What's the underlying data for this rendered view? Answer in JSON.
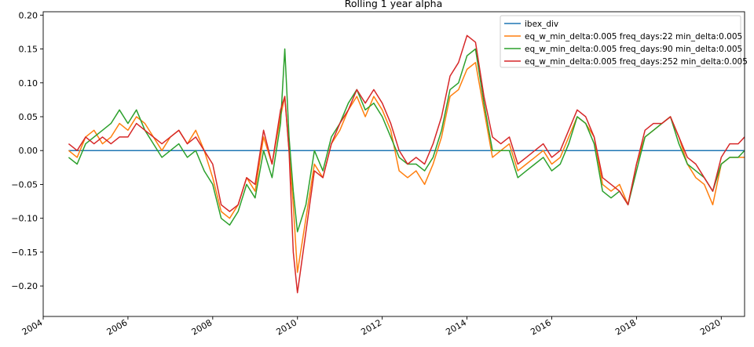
{
  "chart_data": {
    "type": "line",
    "title": "Rolling 1 year alpha",
    "xlabel": "",
    "ylabel": "",
    "xlim": [
      2004.0,
      2020.55
    ],
    "ylim": [
      -0.245,
      0.205
    ],
    "grid": false,
    "legend_position": "top-right",
    "x_ticks": [
      {
        "value": 2004,
        "label": "2004"
      },
      {
        "value": 2006,
        "label": "2006"
      },
      {
        "value": 2008,
        "label": "2008"
      },
      {
        "value": 2010,
        "label": "2010"
      },
      {
        "value": 2012,
        "label": "2012"
      },
      {
        "value": 2014,
        "label": "2014"
      },
      {
        "value": 2016,
        "label": "2016"
      },
      {
        "value": 2018,
        "label": "2018"
      },
      {
        "value": 2020,
        "label": "2020"
      }
    ],
    "y_ticks": [
      {
        "value": 0.2,
        "label": "0.20"
      },
      {
        "value": 0.15,
        "label": "0.15"
      },
      {
        "value": 0.1,
        "label": "0.10"
      },
      {
        "value": 0.05,
        "label": "0.05"
      },
      {
        "value": 0.0,
        "label": "0.00"
      },
      {
        "value": -0.05,
        "label": "−0.05"
      },
      {
        "value": -0.1,
        "label": "−0.10"
      },
      {
        "value": -0.15,
        "label": "−0.15"
      },
      {
        "value": -0.2,
        "label": "−0.20"
      }
    ],
    "x": [
      2004.6,
      2004.8,
      2005.0,
      2005.2,
      2005.4,
      2005.6,
      2005.8,
      2006.0,
      2006.2,
      2006.4,
      2006.6,
      2006.8,
      2007.0,
      2007.2,
      2007.4,
      2007.6,
      2007.8,
      2008.0,
      2008.2,
      2008.4,
      2008.6,
      2008.8,
      2009.0,
      2009.2,
      2009.4,
      2009.6,
      2009.7,
      2009.8,
      2009.9,
      2010.0,
      2010.2,
      2010.4,
      2010.6,
      2010.8,
      2011.0,
      2011.2,
      2011.4,
      2011.6,
      2011.8,
      2012.0,
      2012.2,
      2012.4,
      2012.6,
      2012.8,
      2013.0,
      2013.2,
      2013.4,
      2013.6,
      2013.8,
      2014.0,
      2014.2,
      2014.4,
      2014.6,
      2014.8,
      2015.0,
      2015.2,
      2015.4,
      2015.6,
      2015.8,
      2016.0,
      2016.2,
      2016.4,
      2016.6,
      2016.8,
      2017.0,
      2017.2,
      2017.4,
      2017.6,
      2017.8,
      2018.0,
      2018.2,
      2018.4,
      2018.6,
      2018.8,
      2019.0,
      2019.2,
      2019.4,
      2019.6,
      2019.8,
      2020.0,
      2020.2,
      2020.4,
      2020.55
    ],
    "series": [
      {
        "name": "ibex_div",
        "color": "#1f77b4",
        "values": [
          0,
          0,
          0,
          0,
          0,
          0,
          0,
          0,
          0,
          0,
          0,
          0,
          0,
          0,
          0,
          0,
          0,
          0,
          0,
          0,
          0,
          0,
          0,
          0,
          0,
          0,
          0,
          0,
          0,
          0,
          0,
          0,
          0,
          0,
          0,
          0,
          0,
          0,
          0,
          0,
          0,
          0,
          0,
          0,
          0,
          0,
          0,
          0,
          0,
          0,
          0,
          0,
          0,
          0,
          0,
          0,
          0,
          0,
          0,
          0,
          0,
          0,
          0,
          0,
          0,
          0,
          0,
          0,
          0,
          0,
          0,
          0,
          0,
          0,
          0,
          0,
          0,
          0,
          0,
          0,
          0,
          0,
          0
        ]
      },
      {
        "name": "eq_w_min_delta:0.005 freq_days:22 min_delta:0.005",
        "color": "#ff7f0e",
        "values": [
          0.0,
          -0.01,
          0.02,
          0.03,
          0.01,
          0.02,
          0.04,
          0.03,
          0.05,
          0.04,
          0.02,
          0.0,
          0.02,
          0.03,
          0.01,
          0.03,
          0.0,
          -0.04,
          -0.09,
          -0.1,
          -0.08,
          -0.04,
          -0.06,
          0.02,
          -0.02,
          0.05,
          0.08,
          0.0,
          -0.08,
          -0.18,
          -0.1,
          -0.02,
          -0.04,
          0.01,
          0.03,
          0.06,
          0.08,
          0.05,
          0.08,
          0.06,
          0.03,
          -0.03,
          -0.04,
          -0.03,
          -0.05,
          -0.02,
          0.02,
          0.08,
          0.09,
          0.12,
          0.13,
          0.06,
          -0.01,
          0.0,
          0.01,
          -0.03,
          -0.02,
          -0.01,
          0.0,
          -0.02,
          -0.01,
          0.02,
          0.05,
          0.04,
          0.02,
          -0.05,
          -0.06,
          -0.05,
          -0.08,
          -0.02,
          0.02,
          0.03,
          0.04,
          0.05,
          0.02,
          -0.02,
          -0.04,
          -0.05,
          -0.08,
          -0.02,
          -0.01,
          -0.01,
          -0.01
        ]
      },
      {
        "name": "eq_w_min_delta:0.005 freq_days:90 min_delta:0.005",
        "color": "#2ca02c",
        "values": [
          -0.01,
          -0.02,
          0.01,
          0.02,
          0.03,
          0.04,
          0.06,
          0.04,
          0.06,
          0.03,
          0.01,
          -0.01,
          0.0,
          0.01,
          -0.01,
          0.0,
          -0.03,
          -0.05,
          -0.1,
          -0.11,
          -0.09,
          -0.05,
          -0.07,
          0.0,
          -0.04,
          0.04,
          0.15,
          0.02,
          -0.06,
          -0.12,
          -0.08,
          0.0,
          -0.03,
          0.02,
          0.04,
          0.07,
          0.09,
          0.06,
          0.07,
          0.05,
          0.02,
          -0.01,
          -0.02,
          -0.02,
          -0.03,
          -0.01,
          0.03,
          0.09,
          0.1,
          0.14,
          0.15,
          0.07,
          0.0,
          0.0,
          0.0,
          -0.04,
          -0.03,
          -0.02,
          -0.01,
          -0.03,
          -0.02,
          0.01,
          0.05,
          0.04,
          0.01,
          -0.06,
          -0.07,
          -0.06,
          -0.08,
          -0.03,
          0.02,
          0.03,
          0.04,
          0.05,
          0.01,
          -0.02,
          -0.03,
          -0.04,
          -0.06,
          -0.02,
          -0.01,
          -0.01,
          0.0
        ]
      },
      {
        "name": "eq_w_min_delta:0.005 freq_days:252 min_delta:0.005",
        "color": "#d62728",
        "values": [
          0.01,
          0.0,
          0.02,
          0.01,
          0.02,
          0.01,
          0.02,
          0.02,
          0.04,
          0.03,
          0.02,
          0.01,
          0.02,
          0.03,
          0.01,
          0.02,
          0.0,
          -0.02,
          -0.08,
          -0.09,
          -0.08,
          -0.04,
          -0.05,
          0.03,
          -0.02,
          0.06,
          0.08,
          0.0,
          -0.15,
          -0.21,
          -0.12,
          -0.03,
          -0.04,
          0.01,
          0.04,
          0.06,
          0.09,
          0.07,
          0.09,
          0.07,
          0.04,
          0.0,
          -0.02,
          -0.01,
          -0.02,
          0.01,
          0.05,
          0.11,
          0.13,
          0.17,
          0.16,
          0.08,
          0.02,
          0.01,
          0.02,
          -0.02,
          -0.01,
          0.0,
          0.01,
          -0.01,
          0.0,
          0.03,
          0.06,
          0.05,
          0.02,
          -0.04,
          -0.05,
          -0.06,
          -0.08,
          -0.02,
          0.03,
          0.04,
          0.04,
          0.05,
          0.02,
          -0.01,
          -0.02,
          -0.04,
          -0.06,
          -0.01,
          0.01,
          0.01,
          0.02
        ]
      }
    ]
  }
}
